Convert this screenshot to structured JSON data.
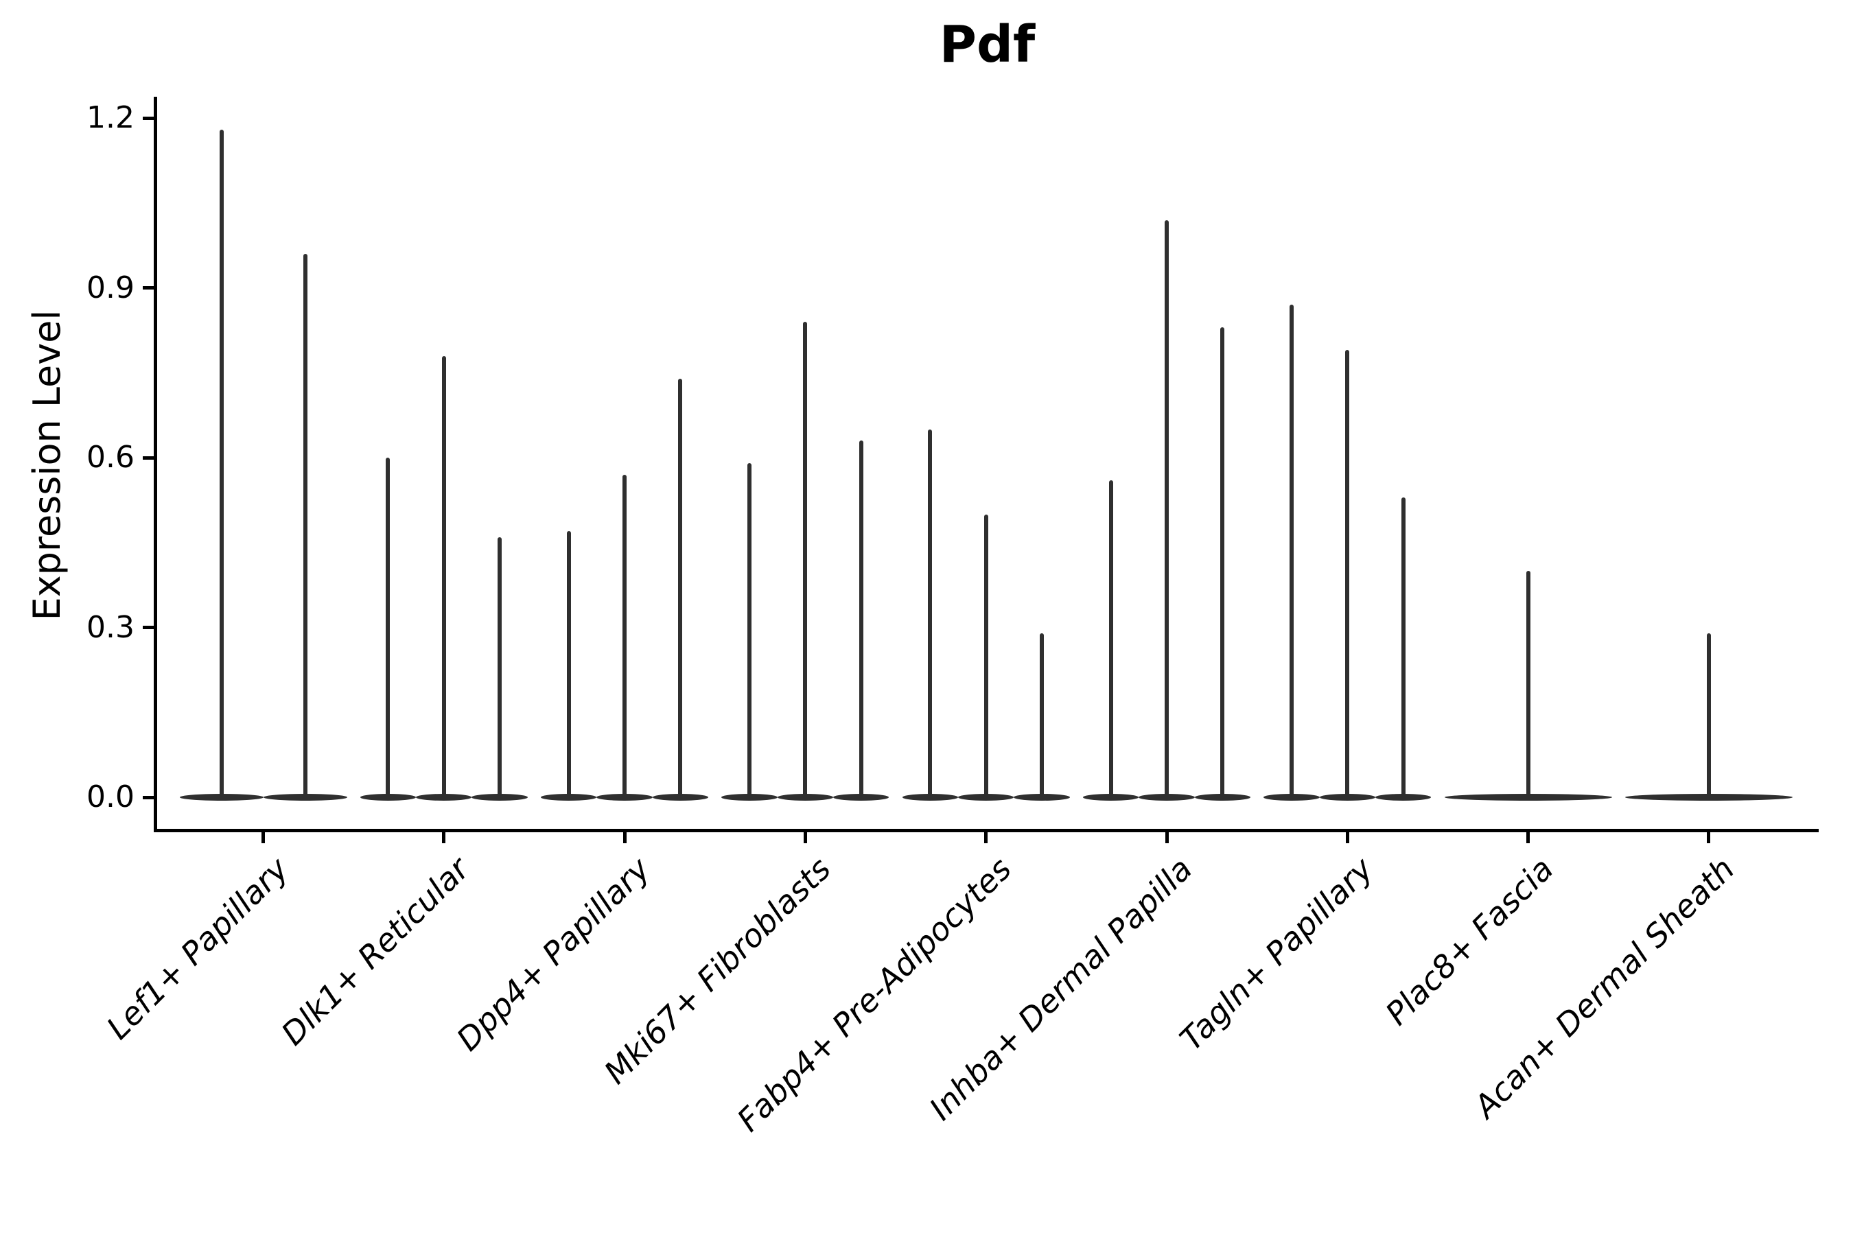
{
  "figure": {
    "background": "#ffffff"
  },
  "chart_data": {
    "type": "violin",
    "title": "Pdf",
    "xlabel": "",
    "ylabel": "Expression Level",
    "ylim": [
      0,
      1.24
    ],
    "yticks": [
      0.0,
      0.3,
      0.6,
      0.9,
      1.2
    ],
    "ytick_labels": [
      "0.0",
      "0.3",
      "0.6",
      "0.9",
      "1.2"
    ],
    "grid": false,
    "legend": false,
    "categories": [
      "Lef1+ Papillary",
      "Dlk1+ Reticular",
      "Dpp4+ Papillary",
      "Mki67+ Fibroblasts",
      "Fabp4+ Pre-Adipocytes",
      "Inhba+ Dermal Papilla",
      "Tagln+ Papillary",
      "Plac8+ Fascia",
      "Acan+ Dermal Sheath"
    ],
    "groups": [
      {
        "category": "Lef1+ Papillary",
        "violin_peaks": [
          1.18,
          0.96
        ]
      },
      {
        "category": "Dlk1+ Reticular",
        "violin_peaks": [
          0.6,
          0.78,
          0.46
        ]
      },
      {
        "category": "Dpp4+ Papillary",
        "violin_peaks": [
          0.47,
          0.57,
          0.74
        ]
      },
      {
        "category": "Mki67+ Fibroblasts",
        "violin_peaks": [
          0.59,
          0.84,
          0.63
        ]
      },
      {
        "category": "Fabp4+ Pre-Adipocytes",
        "violin_peaks": [
          0.65,
          0.5,
          0.29
        ]
      },
      {
        "category": "Inhba+ Dermal Papilla",
        "violin_peaks": [
          0.56,
          1.02,
          0.83
        ]
      },
      {
        "category": "Tagln+ Papillary",
        "violin_peaks": [
          0.87,
          0.79,
          0.53
        ]
      },
      {
        "category": "Plac8+ Fascia",
        "violin_peaks": [
          0.4
        ]
      },
      {
        "category": "Acan+ Dermal Sheath",
        "violin_peaks": [
          0.29
        ]
      }
    ],
    "colors": {
      "violin": "#2f2f2f",
      "axis": "#000000",
      "text": "#000000",
      "background": "#ffffff"
    }
  }
}
